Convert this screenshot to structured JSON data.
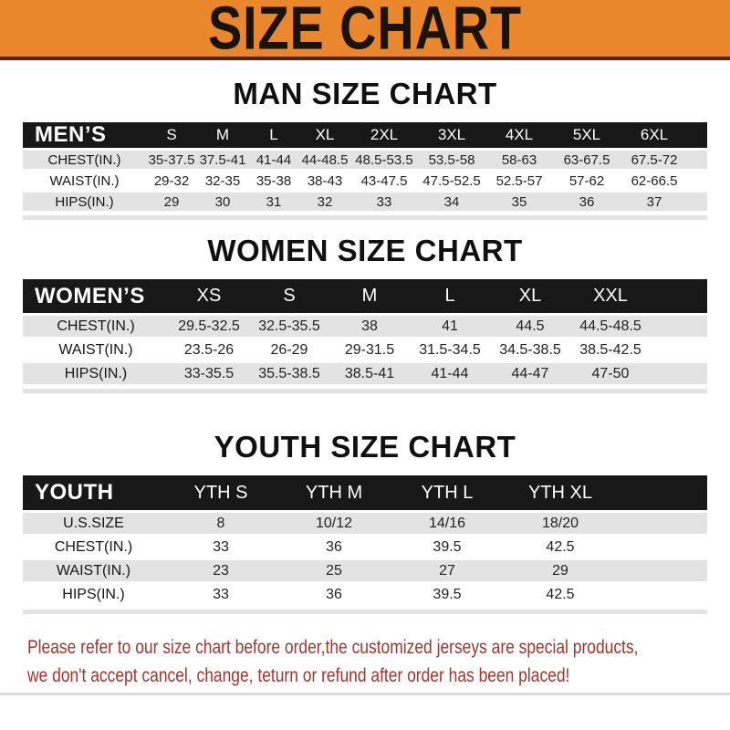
{
  "banner": {
    "title": "SIZE CHART",
    "bg_color": "#EA872C",
    "border_color": "#5A2012"
  },
  "colors": {
    "banner_bg": "#EA872C",
    "banner_border": "#5A2012",
    "band_bg": "#181818",
    "stripe": "#E3E3E3",
    "footer_red": "#A8322B"
  },
  "sections": [
    {
      "id": "men",
      "heading": "MAN SIZE CHART",
      "table": {
        "label": "MEN’S",
        "columns": [
          "S",
          "M",
          "L",
          "XL",
          "2XL",
          "3XL",
          "4XL",
          "5XL",
          "6XL"
        ],
        "rows": [
          {
            "label": "CHEST(IN.)",
            "values": [
              "35-37.5",
              "37.5-41",
              "41-44",
              "44-48.5",
              "48.5-53.5",
              "53.5-58",
              "58-63",
              "63-67.5",
              "67.5-72"
            ]
          },
          {
            "label": "WAIST(IN.)",
            "values": [
              "29-32",
              "32-35",
              "35-38",
              "38-43",
              "43-47.5",
              "47.5-52.5",
              "52.5-57",
              "57-62",
              "62-66.5"
            ]
          },
          {
            "label": "HIPS(IN.)",
            "values": [
              "29",
              "30",
              "31",
              "32",
              "33",
              "34",
              "35",
              "36",
              "37"
            ]
          }
        ]
      }
    },
    {
      "id": "women",
      "heading": "WOMEN SIZE CHART",
      "table": {
        "label": "WOMEN’S",
        "columns": [
          "XS",
          "S",
          "M",
          "L",
          "XL",
          "XXL"
        ],
        "rows": [
          {
            "label": "CHEST(IN.)",
            "values": [
              "29.5-32.5",
              "32.5-35.5",
              "38",
              "41",
              "44.5",
              "44.5-48.5"
            ]
          },
          {
            "label": "WAIST(IN.)",
            "values": [
              "23.5-26",
              "26-29",
              "29-31.5",
              "31.5-34.5",
              "34.5-38.5",
              "38.5-42.5"
            ]
          },
          {
            "label": "HIPS(IN.)",
            "values": [
              "33-35.5",
              "35.5-38.5",
              "38.5-41",
              "41-44",
              "44-47",
              "47-50"
            ]
          }
        ]
      }
    },
    {
      "id": "youth",
      "heading": "YOUTH SIZE CHART",
      "table": {
        "label": "YOUTH",
        "columns": [
          "YTH S",
          "YTH M",
          "YTH L",
          "YTH XL"
        ],
        "rows": [
          {
            "label": "U.S.SIZE",
            "values": [
              "8",
              "10/12",
              "14/16",
              "18/20"
            ]
          },
          {
            "label": "CHEST(IN.)",
            "values": [
              "33",
              "36",
              "39.5",
              "42.5"
            ]
          },
          {
            "label": "WAIST(IN.)",
            "values": [
              "23",
              "25",
              "27",
              "29"
            ]
          },
          {
            "label": "HIPS(IN.)",
            "values": [
              "33",
              "36",
              "39.5",
              "42.5"
            ]
          }
        ]
      }
    }
  ],
  "footer": {
    "lines": [
      "Please refer to our size chart before order,the customized jerseys are special products,",
      "we don't accept cancel, change, teturn or refund after order has been placed!"
    ]
  }
}
